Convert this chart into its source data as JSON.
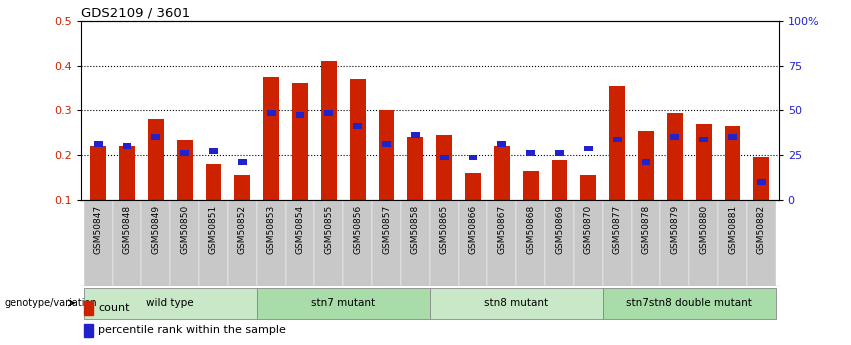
{
  "title": "GDS2109 / 3601",
  "samples": [
    "GSM50847",
    "GSM50848",
    "GSM50849",
    "GSM50850",
    "GSM50851",
    "GSM50852",
    "GSM50853",
    "GSM50854",
    "GSM50855",
    "GSM50856",
    "GSM50857",
    "GSM50858",
    "GSM50865",
    "GSM50866",
    "GSM50867",
    "GSM50868",
    "GSM50869",
    "GSM50870",
    "GSM50877",
    "GSM50878",
    "GSM50879",
    "GSM50880",
    "GSM50881",
    "GSM50882"
  ],
  "count_values": [
    0.22,
    0.22,
    0.28,
    0.235,
    0.18,
    0.155,
    0.375,
    0.36,
    0.41,
    0.37,
    0.3,
    0.24,
    0.245,
    0.16,
    0.22,
    0.165,
    0.19,
    0.155,
    0.355,
    0.255,
    0.295,
    0.27,
    0.265,
    0.195
  ],
  "percentile_values": [
    0.225,
    0.22,
    0.24,
    0.205,
    0.21,
    0.185,
    0.295,
    0.29,
    0.295,
    0.265,
    0.225,
    0.245,
    0.195,
    0.195,
    0.225,
    0.205,
    0.205,
    0.215,
    0.235,
    0.185,
    0.24,
    0.235,
    0.24,
    0.14
  ],
  "groups": [
    {
      "label": "wild type",
      "start": 0,
      "end": 5,
      "color": "#c8e8c8"
    },
    {
      "label": "stn7 mutant",
      "start": 6,
      "end": 11,
      "color": "#a8dca8"
    },
    {
      "label": "stn8 mutant",
      "start": 12,
      "end": 17,
      "color": "#c8e8c8"
    },
    {
      "label": "stn7stn8 double mutant",
      "start": 18,
      "end": 23,
      "color": "#a8dca8"
    }
  ],
  "ylim_left": [
    0.1,
    0.5
  ],
  "ylim_right": [
    0,
    100
  ],
  "yticks_left": [
    0.1,
    0.2,
    0.3,
    0.4,
    0.5
  ],
  "yticks_right": [
    0,
    25,
    50,
    75,
    100
  ],
  "ytick_labels_right": [
    "0",
    "25",
    "50",
    "75",
    "100%"
  ],
  "bar_color": "#cc2200",
  "percentile_color": "#2222cc",
  "left_label_color": "#cc2200",
  "right_label_color": "#2222cc",
  "tick_bg_color": "#c8c8c8",
  "legend_count": "count",
  "legend_percentile": "percentile rank within the sample",
  "genotype_label": "genotype/variation"
}
